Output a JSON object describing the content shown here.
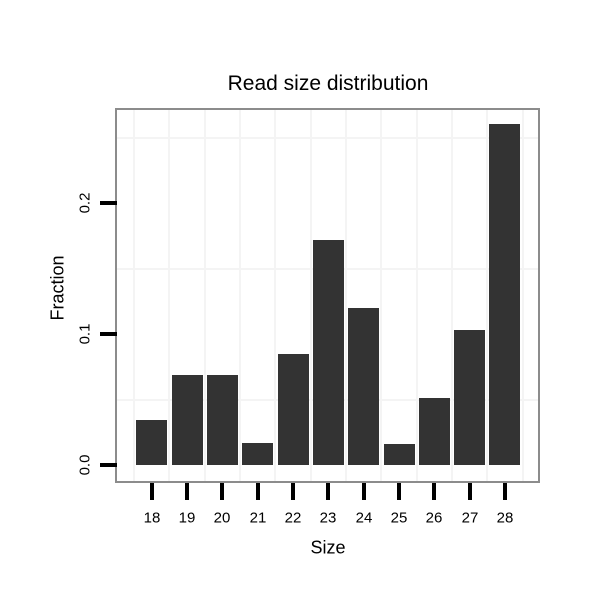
{
  "chart_data": {
    "type": "bar",
    "title": "Read size distribution",
    "xlabel": "Size",
    "ylabel": "Fraction",
    "categories": [
      "18",
      "19",
      "20",
      "21",
      "22",
      "23",
      "24",
      "25",
      "26",
      "27",
      "28"
    ],
    "values": [
      0.034,
      0.069,
      0.069,
      0.017,
      0.085,
      0.172,
      0.12,
      0.016,
      0.051,
      0.103,
      0.26
    ],
    "y_tick_labels": [
      "0.0",
      "0.1",
      "0.2"
    ],
    "y_tick_values": [
      0.0,
      0.1,
      0.2
    ],
    "minor_gridlines_y": [
      0.05,
      0.15,
      0.25
    ],
    "ylim": [
      0,
      0.273
    ],
    "grid": "faint minor gridlines, white panel",
    "legend": "none",
    "bar_color": "#333333",
    "panel_border_color": "#8c8c8c",
    "gridline_color": "#f4f4f4",
    "text_color": "#000000",
    "background_color": "#ffffff"
  }
}
